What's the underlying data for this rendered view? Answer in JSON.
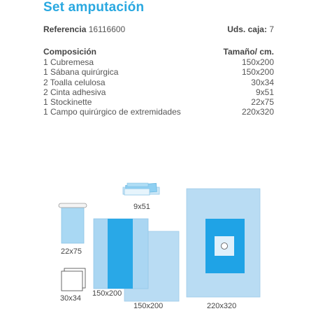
{
  "title": "Set amputación",
  "reference": {
    "label": "Referencia",
    "value": "16116600"
  },
  "units": {
    "label": "Uds. caja:",
    "value": "7"
  },
  "composition": {
    "header_left": "Composición",
    "header_right": "Tamaño/ cm.",
    "items": [
      {
        "name": "1 Cubremesa",
        "size": "150x200"
      },
      {
        "name": "1 Sábana quirúrgica",
        "size": "150x200"
      },
      {
        "name": "2 Toalla celulosa",
        "size": "30x34"
      },
      {
        "name": "2 Cinta adhesiva",
        "size": "9x51"
      },
      {
        "name": "1 Stockinette",
        "size": "22x75"
      },
      {
        "name": "1 Campo quirúrgico de extremidades",
        "size": "220x320"
      }
    ]
  },
  "illustration_labels": {
    "tape": "9x51",
    "stockinette": "22x75",
    "towel": "30x34",
    "sheet": "150x200",
    "cover": "150x200",
    "extremity_drape": "220x320"
  },
  "colors": {
    "accent": "#29a8e0",
    "light_blue": "#b9dcf3",
    "mid_blue": "#5ec3ee",
    "strong_blue": "#1fa3e6"
  }
}
